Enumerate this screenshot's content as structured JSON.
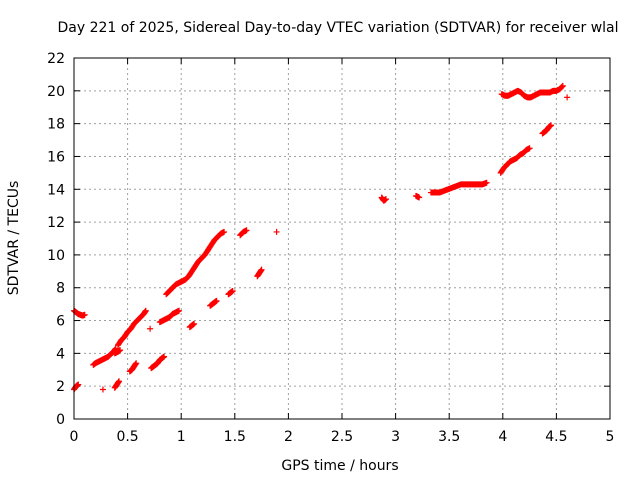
{
  "chart_data": {
    "type": "scatter",
    "title": "Day 221 of 2025, Sidereal Day-to-day VTEC variation (SDTVAR) for receiver wlal",
    "xlabel": "GPS time / hours",
    "ylabel": "SDTVAR / TECUs",
    "xlim": [
      0,
      5
    ],
    "ylim": [
      0,
      22
    ],
    "xticks": [
      0,
      0.5,
      1,
      1.5,
      2,
      2.5,
      3,
      3.5,
      4,
      4.5,
      5
    ],
    "xtick_labels": [
      "0",
      "0.5",
      "1",
      "1.5",
      "2",
      "2.5",
      "3",
      "3.5",
      "4",
      "4.5",
      "5"
    ],
    "yticks": [
      0,
      2,
      4,
      6,
      8,
      10,
      12,
      14,
      16,
      18,
      20,
      22
    ],
    "ytick_labels": [
      "0",
      "2",
      "4",
      "6",
      "8",
      "10",
      "12",
      "14",
      "16",
      "18",
      "20",
      "22"
    ],
    "grid": true,
    "marker": "+",
    "color": "#ff0000",
    "series": [
      {
        "name": "SDTVAR",
        "segments": [
          [
            [
              0.0,
              6.6
            ],
            [
              0.02,
              6.5
            ],
            [
              0.04,
              6.4
            ],
            [
              0.06,
              6.35
            ],
            [
              0.08,
              6.3
            ],
            [
              0.1,
              6.35
            ]
          ],
          [
            [
              0.0,
              1.8
            ],
            [
              0.02,
              2.0
            ],
            [
              0.04,
              2.1
            ]
          ],
          [
            [
              0.18,
              3.3
            ],
            [
              0.2,
              3.4
            ],
            [
              0.23,
              3.5
            ],
            [
              0.26,
              3.6
            ],
            [
              0.29,
              3.7
            ],
            [
              0.32,
              3.8
            ],
            [
              0.35,
              4.0
            ],
            [
              0.37,
              4.1
            ],
            [
              0.39,
              4.3
            ]
          ],
          [
            [
              0.27,
              1.8
            ]
          ],
          [
            [
              0.38,
              1.9
            ],
            [
              0.4,
              2.1
            ],
            [
              0.42,
              2.3
            ]
          ],
          [
            [
              0.38,
              4.0
            ],
            [
              0.41,
              4.1
            ],
            [
              0.43,
              4.2
            ]
          ],
          [
            [
              0.41,
              4.5
            ],
            [
              0.44,
              4.8
            ],
            [
              0.47,
              5.0
            ],
            [
              0.5,
              5.3
            ],
            [
              0.53,
              5.5
            ],
            [
              0.56,
              5.8
            ],
            [
              0.59,
              6.0
            ],
            [
              0.62,
              6.2
            ],
            [
              0.65,
              6.4
            ],
            [
              0.67,
              6.6
            ]
          ],
          [
            [
              0.52,
              2.9
            ],
            [
              0.54,
              3.0
            ],
            [
              0.56,
              3.2
            ],
            [
              0.58,
              3.4
            ]
          ],
          [
            [
              0.71,
              5.5
            ]
          ],
          [
            [
              0.72,
              3.1
            ],
            [
              0.74,
              3.2
            ],
            [
              0.76,
              3.3
            ],
            [
              0.78,
              3.4
            ],
            [
              0.8,
              3.6
            ],
            [
              0.82,
              3.7
            ],
            [
              0.84,
              3.8
            ]
          ],
          [
            [
              0.8,
              5.9
            ],
            [
              0.83,
              6.0
            ],
            [
              0.86,
              6.1
            ],
            [
              0.89,
              6.2
            ],
            [
              0.92,
              6.4
            ],
            [
              0.95,
              6.5
            ],
            [
              0.98,
              6.6
            ]
          ],
          [
            [
              0.86,
              7.6
            ],
            [
              0.89,
              7.8
            ],
            [
              0.92,
              8.0
            ],
            [
              0.95,
              8.2
            ],
            [
              0.98,
              8.3
            ],
            [
              1.01,
              8.4
            ],
            [
              1.04,
              8.5
            ],
            [
              1.07,
              8.7
            ],
            [
              1.1,
              9.0
            ],
            [
              1.13,
              9.3
            ],
            [
              1.16,
              9.6
            ],
            [
              1.19,
              9.8
            ],
            [
              1.22,
              10.0
            ],
            [
              1.25,
              10.3
            ],
            [
              1.28,
              10.6
            ],
            [
              1.31,
              10.9
            ],
            [
              1.34,
              11.1
            ],
            [
              1.37,
              11.3
            ],
            [
              1.4,
              11.4
            ]
          ],
          [
            [
              1.08,
              5.6
            ],
            [
              1.1,
              5.7
            ],
            [
              1.12,
              5.8
            ]
          ],
          [
            [
              1.27,
              6.9
            ],
            [
              1.29,
              7.0
            ],
            [
              1.31,
              7.1
            ],
            [
              1.33,
              7.2
            ]
          ],
          [
            [
              1.44,
              7.6
            ],
            [
              1.46,
              7.7
            ],
            [
              1.48,
              7.8
            ]
          ],
          [
            [
              1.55,
              11.2
            ],
            [
              1.58,
              11.4
            ],
            [
              1.61,
              11.5
            ]
          ],
          [
            [
              1.71,
              8.7
            ],
            [
              1.73,
              8.9
            ],
            [
              1.75,
              9.1
            ]
          ],
          [
            [
              1.89,
              11.4
            ]
          ],
          [
            [
              2.87,
              13.5
            ],
            [
              2.89,
              13.3
            ],
            [
              2.91,
              13.4
            ]
          ],
          [
            [
              3.19,
              13.6
            ],
            [
              3.22,
              13.5
            ]
          ],
          [
            [
              3.33,
              13.8
            ],
            [
              3.37,
              13.8
            ],
            [
              3.41,
              13.8
            ],
            [
              3.45,
              13.9
            ],
            [
              3.49,
              14.0
            ],
            [
              3.53,
              14.1
            ],
            [
              3.57,
              14.2
            ],
            [
              3.61,
              14.3
            ],
            [
              3.65,
              14.3
            ],
            [
              3.69,
              14.3
            ],
            [
              3.73,
              14.3
            ],
            [
              3.77,
              14.3
            ],
            [
              3.81,
              14.3
            ],
            [
              3.85,
              14.4
            ]
          ],
          [
            [
              3.98,
              15.0
            ],
            [
              4.01,
              15.3
            ],
            [
              4.04,
              15.5
            ],
            [
              4.07,
              15.7
            ],
            [
              4.1,
              15.8
            ],
            [
              4.13,
              15.9
            ],
            [
              4.16,
              16.1
            ],
            [
              4.19,
              16.2
            ],
            [
              4.22,
              16.4
            ],
            [
              4.25,
              16.5
            ]
          ],
          [
            [
              3.99,
              19.8
            ],
            [
              4.02,
              19.7
            ],
            [
              4.05,
              19.7
            ],
            [
              4.08,
              19.8
            ],
            [
              4.11,
              19.9
            ],
            [
              4.14,
              20.0
            ],
            [
              4.17,
              19.9
            ],
            [
              4.2,
              19.7
            ],
            [
              4.23,
              19.6
            ],
            [
              4.26,
              19.6
            ],
            [
              4.29,
              19.7
            ],
            [
              4.32,
              19.8
            ],
            [
              4.35,
              19.9
            ],
            [
              4.38,
              19.9
            ],
            [
              4.41,
              19.9
            ],
            [
              4.44,
              19.9
            ],
            [
              4.47,
              20.0
            ],
            [
              4.5,
              20.0
            ],
            [
              4.53,
              20.1
            ],
            [
              4.56,
              20.3
            ]
          ],
          [
            [
              4.37,
              17.4
            ],
            [
              4.39,
              17.5
            ],
            [
              4.41,
              17.6
            ],
            [
              4.43,
              17.8
            ],
            [
              4.45,
              17.9
            ]
          ],
          [
            [
              4.6,
              19.6
            ]
          ]
        ]
      }
    ]
  }
}
